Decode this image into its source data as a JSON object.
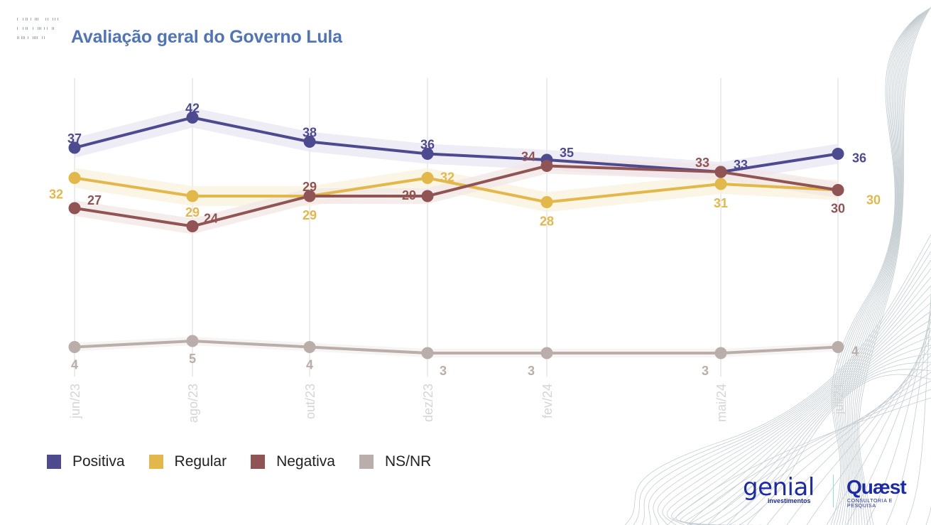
{
  "header": {
    "title": "Avaliação geral do Governo Lula"
  },
  "chart_data": {
    "type": "line",
    "title": "Avaliação geral do Governo Lula",
    "xlabel": "",
    "ylabel": "",
    "categories": [
      "jun/23",
      "ago/23",
      "out/23",
      "dez/23",
      "fev/24",
      "mai/24",
      "jul/24"
    ],
    "ylim": [
      0,
      50
    ],
    "grid": "vertical",
    "legend_position": "bottom-left",
    "series": [
      {
        "name": "Positiva",
        "color": "#4e4a8f",
        "band_color": "#e8e6f1",
        "values": [
          37,
          42,
          38,
          36,
          35,
          33,
          36
        ]
      },
      {
        "name": "Regular",
        "color": "#e2b84a",
        "band_color": "#f9f2de",
        "values": [
          32,
          29,
          29,
          32,
          28,
          31,
          30
        ]
      },
      {
        "name": "Negativa",
        "color": "#8f5453",
        "band_color": "#f1e6e6",
        "values": [
          27,
          24,
          29,
          29,
          34,
          33,
          30
        ]
      },
      {
        "name": "NS/NR",
        "color": "#b9aea9",
        "band_color": "#f3f1f0",
        "values": [
          4,
          5,
          4,
          3,
          3,
          3,
          4
        ]
      }
    ]
  },
  "legend": {
    "items": [
      {
        "label": "Positiva",
        "color": "#4e4a8f"
      },
      {
        "label": "Regular",
        "color": "#e2b84a"
      },
      {
        "label": "Negativa",
        "color": "#8f5453"
      },
      {
        "label": "NS/NR",
        "color": "#b9aea9"
      }
    ]
  },
  "logos": {
    "genial": "genial",
    "genial_sub": "investimentos",
    "quaest": "Quæst",
    "quaest_sub": "CONSULTORIA E PESQUISA"
  }
}
